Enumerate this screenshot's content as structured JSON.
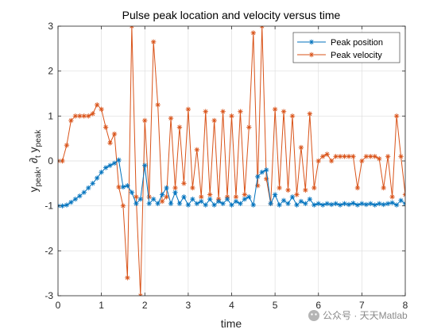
{
  "chart_data": {
    "type": "line",
    "title": "Pulse peak location and velocity versus time",
    "xlabel": "time",
    "ylabel": {
      "parts": [
        "y",
        "peak",
        ", ∂",
        "t",
        " y",
        "peak"
      ]
    },
    "xlim": [
      0,
      8
    ],
    "ylim": [
      -3,
      3
    ],
    "xticks": [
      "0",
      "1",
      "2",
      "3",
      "4",
      "5",
      "6",
      "7",
      "8"
    ],
    "yticks": [
      "-3",
      "-2",
      "-1",
      "0",
      "1",
      "2",
      "3"
    ],
    "grid": true,
    "legend_position": "top-right",
    "series": [
      {
        "name": "Peak position",
        "color": "#0072BD",
        "marker": "asterisk",
        "x": [
          0,
          0.1,
          0.2,
          0.3,
          0.4,
          0.5,
          0.6,
          0.7,
          0.8,
          0.9,
          1.0,
          1.1,
          1.2,
          1.3,
          1.4,
          1.5,
          1.6,
          1.7,
          1.8,
          1.9,
          2.0,
          2.1,
          2.2,
          2.3,
          2.4,
          2.5,
          2.6,
          2.7,
          2.8,
          2.9,
          3.0,
          3.1,
          3.2,
          3.3,
          3.4,
          3.5,
          3.6,
          3.7,
          3.8,
          3.9,
          4.0,
          4.1,
          4.2,
          4.3,
          4.4,
          4.5,
          4.6,
          4.7,
          4.8,
          4.9,
          5.0,
          5.1,
          5.2,
          5.3,
          5.4,
          5.5,
          5.6,
          5.7,
          5.8,
          5.9,
          6.0,
          6.1,
          6.2,
          6.3,
          6.4,
          6.5,
          6.6,
          6.7,
          6.8,
          6.9,
          7.0,
          7.1,
          7.2,
          7.3,
          7.4,
          7.5,
          7.6,
          7.7,
          7.8,
          7.9,
          8.0
        ],
        "values": [
          -1.0,
          -1.0,
          -0.98,
          -0.92,
          -0.85,
          -0.78,
          -0.7,
          -0.6,
          -0.5,
          -0.38,
          -0.25,
          -0.15,
          -0.1,
          -0.05,
          0.02,
          -0.58,
          -0.55,
          -0.7,
          -0.95,
          -0.85,
          -0.1,
          -0.95,
          -0.85,
          -0.95,
          -0.75,
          -0.6,
          -0.95,
          -0.7,
          -0.95,
          -0.8,
          -0.98,
          -0.85,
          -0.95,
          -0.9,
          -0.98,
          -0.85,
          -0.98,
          -0.9,
          -0.95,
          -0.85,
          -0.98,
          -0.9,
          -0.95,
          -0.85,
          -0.8,
          -0.98,
          -0.35,
          -0.25,
          -0.2,
          -0.95,
          -0.75,
          -0.98,
          -0.88,
          -0.95,
          -0.8,
          -0.98,
          -0.9,
          -0.95,
          -0.85,
          -0.98,
          -0.95,
          -0.98,
          -0.95,
          -0.97,
          -0.95,
          -0.98,
          -0.95,
          -0.97,
          -0.94,
          -0.98,
          -0.95,
          -0.97,
          -0.95,
          -0.98,
          -0.95,
          -0.97,
          -0.95,
          -0.93,
          -0.98,
          -0.88,
          -0.95
        ]
      },
      {
        "name": "Peak velocity",
        "color": "#D95319",
        "marker": "asterisk",
        "x": [
          0,
          0.1,
          0.2,
          0.3,
          0.4,
          0.5,
          0.6,
          0.7,
          0.8,
          0.9,
          1.0,
          1.1,
          1.2,
          1.3,
          1.4,
          1.5,
          1.6,
          1.7,
          1.8,
          1.9,
          2.0,
          2.1,
          2.2,
          2.3,
          2.4,
          2.5,
          2.6,
          2.7,
          2.8,
          2.9,
          3.0,
          3.1,
          3.2,
          3.3,
          3.4,
          3.5,
          3.6,
          3.7,
          3.8,
          3.9,
          4.0,
          4.1,
          4.2,
          4.3,
          4.4,
          4.5,
          4.6,
          4.7,
          4.8,
          4.9,
          5.0,
          5.1,
          5.2,
          5.3,
          5.4,
          5.5,
          5.6,
          5.7,
          5.8,
          5.9,
          6.0,
          6.1,
          6.2,
          6.3,
          6.4,
          6.5,
          6.6,
          6.7,
          6.8,
          6.9,
          7.0,
          7.1,
          7.2,
          7.3,
          7.4,
          7.5,
          7.6,
          7.7,
          7.8,
          7.9,
          8.0
        ],
        "values": [
          0.0,
          0.0,
          0.35,
          0.9,
          1.0,
          1.0,
          1.0,
          1.0,
          1.05,
          1.25,
          1.15,
          0.75,
          0.4,
          0.6,
          -0.58,
          -1.0,
          -2.6,
          3.0,
          -0.8,
          -3.0,
          0.9,
          -0.8,
          2.65,
          1.25,
          -0.9,
          -0.8,
          0.95,
          -0.6,
          0.75,
          -0.5,
          1.15,
          -0.6,
          0.25,
          -0.8,
          1.1,
          -0.75,
          0.9,
          -0.85,
          1.1,
          -0.8,
          1.0,
          -0.8,
          1.1,
          -0.75,
          0.75,
          2.85,
          -0.55,
          3.0,
          -0.4,
          -0.95,
          1.15,
          -0.6,
          1.1,
          -0.65,
          1.0,
          -0.75,
          0.3,
          -0.65,
          1.05,
          -0.6,
          0.0,
          0.1,
          0.15,
          0.0,
          0.1,
          0.1,
          0.1,
          0.1,
          0.1,
          -0.6,
          0.0,
          0.1,
          0.1,
          0.1,
          0.05,
          -0.6,
          0.1,
          -0.8,
          1.0,
          0.1,
          -0.75
        ]
      }
    ]
  },
  "watermark": {
    "brand": "公众号 · 天天Matlab"
  }
}
